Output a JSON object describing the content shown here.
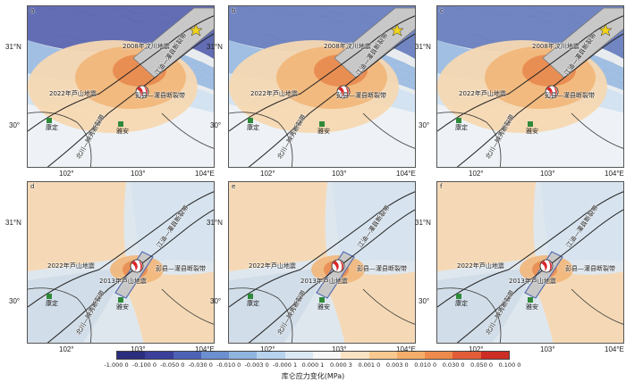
{
  "panels": [
    {
      "label": "a",
      "rupture": "2008",
      "epicenter2013": false
    },
    {
      "label": "b",
      "rupture": "2008",
      "epicenter2013": false
    },
    {
      "label": "c",
      "rupture": "2008",
      "epicenter2013": false
    },
    {
      "label": "d",
      "rupture": "2013",
      "epicenter2013": true
    },
    {
      "label": "e",
      "rupture": "2013",
      "epicenter2013": true
    },
    {
      "label": "f",
      "rupture": "2013",
      "epicenter2013": true
    }
  ],
  "axes": {
    "y_ticks": [
      "31°N",
      "30°"
    ],
    "x_ticks": [
      "102°",
      "103°",
      "104°E"
    ]
  },
  "labels": {
    "wenchuan": "2008年汶川地震",
    "lushan2022": "2022年芦山地震",
    "lushan2013": "2013年芦山地震",
    "pengguan": "彭县—灌县断裂带",
    "jiangyou": "江油—灌县断裂带",
    "beichuan": "北川—映秀断裂带",
    "kangding": "康定",
    "yaan": "雅安"
  },
  "colorbar": {
    "ticks": [
      "-1.000 0",
      "-0.100 0",
      "-0.050 0",
      "-0.030 0",
      "-0.010 0",
      "-0.003 0",
      "-0.000 1",
      "0.000 1",
      "0.000 3",
      "0.001 0",
      "0.003 0",
      "0.010 0",
      "0.030 0",
      "0.050 0",
      "0.100 0"
    ],
    "colors": [
      "#2b2d7e",
      "#3a3f9a",
      "#4e62b5",
      "#6b8fcf",
      "#8fb4e0",
      "#b7d3ee",
      "#dbe9f5",
      "#f7f7f7",
      "#fbe2c3",
      "#f8c88f",
      "#f4ad6a",
      "#ee8a4c",
      "#e25d37",
      "#cc2d25"
    ],
    "title": "库仑应力变化(MPa)"
  },
  "colors": {
    "pos_light": "#f6d8b2",
    "pos_mid": "#f2b679",
    "pos_strong": "#e8894f",
    "neg_light": "#cfe2f2",
    "neg_mid": "#8fb4e0",
    "neg_strong": "#4a57a8",
    "rupture_fill": "#c8c8c8",
    "site_green": "#2f8a3a"
  }
}
